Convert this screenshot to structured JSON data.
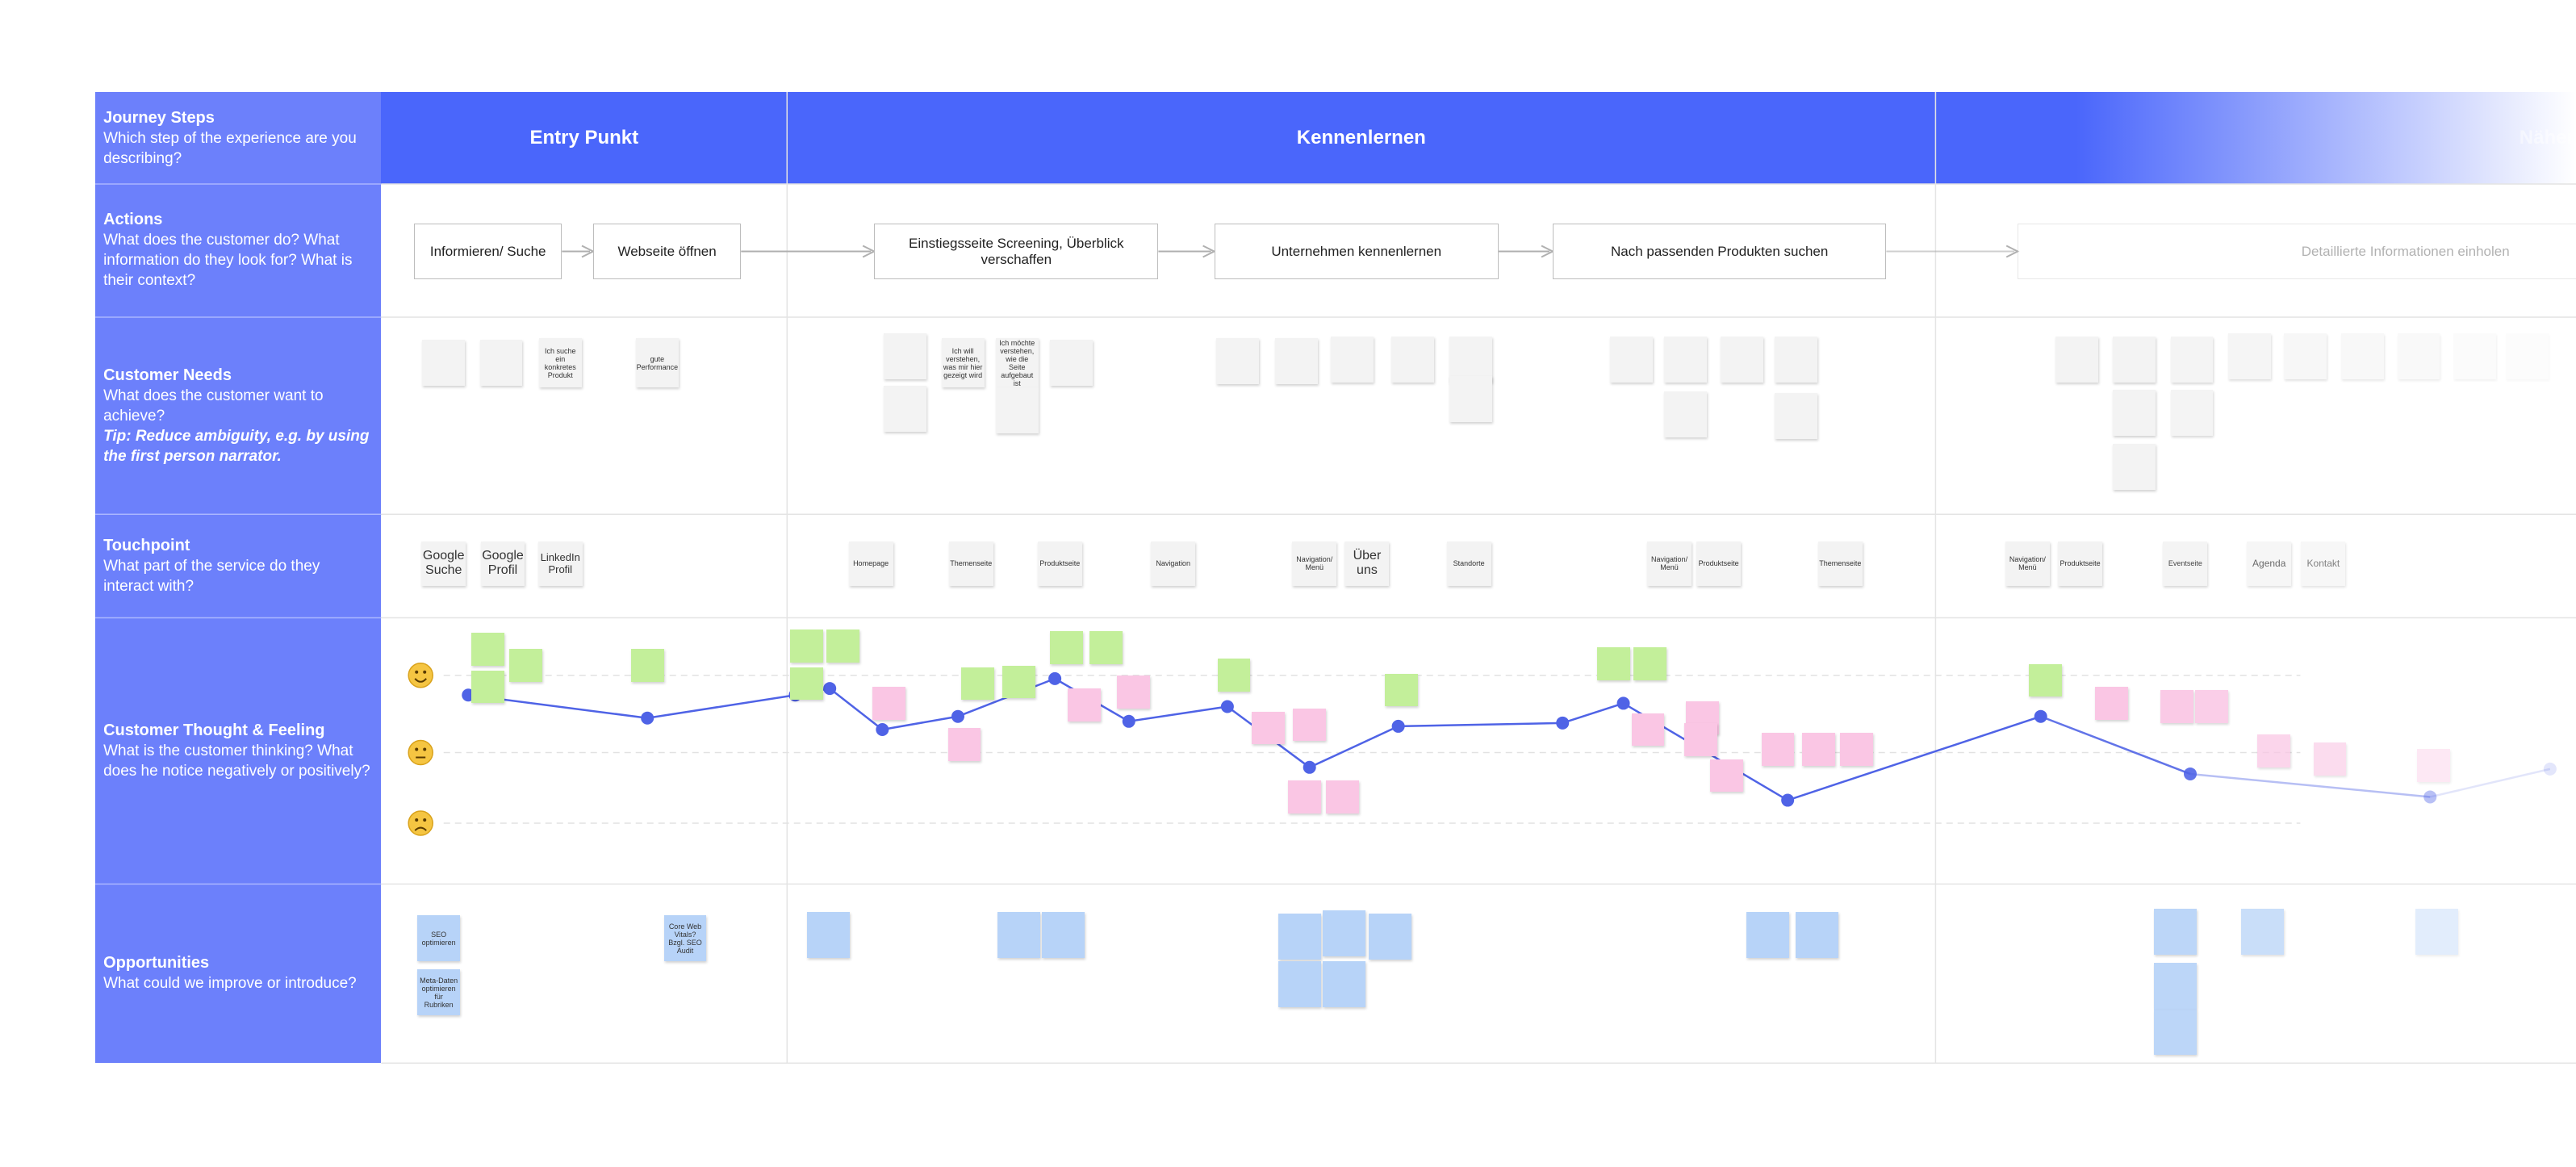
{
  "rows": [
    {
      "title": "Journey Steps",
      "description": "Which step of the experience are you describing?"
    },
    {
      "title": "Actions",
      "description": "What does the customer do? What information do they look for? What is their context?"
    },
    {
      "title": "Customer Needs",
      "description": "What does the customer want to achieve?",
      "tip": "Tip: Reduce ambiguity, e.g. by using the first person narrator."
    },
    {
      "title": "Touchpoint",
      "description": "What part of the service do they interact with?"
    },
    {
      "title": "Customer Thought & Feeling",
      "description": "What is the customer thinking? What does he notice negatively or positively?"
    },
    {
      "title": "Opportunities",
      "description": "What could we improve or introduce?"
    }
  ],
  "phases": [
    "Entry Punkt",
    "Kennenlernen",
    "Näher"
  ],
  "actions": [
    "Informieren/ Suche",
    "Webseite öffnen",
    "Einstiegsseite Screening, Überblick verschaffen",
    "Unternehmen kennenlernen",
    "Nach passenden Produkten suchen",
    "Detaillierte Informationen einholen"
  ],
  "needs": [
    "Ich suche ein konkretes Produkt",
    "gute Performance",
    "Ich will verstehen, was mir hier gezeigt wird",
    "Ich möchte verstehen, wie die Seite aufgebaut ist"
  ],
  "touchpoints": [
    "Google Suche",
    "Google Profil",
    "LinkedIn Profil",
    "Homepage",
    "Themenseite",
    "Produktseite",
    "Navigation",
    "Navigation/ Menü",
    "Über uns",
    "Standorte",
    "Navigation/ Menü",
    "Produktseite",
    "Themenseite",
    "Navigation/ Menü",
    "Produktseite",
    "Eventseite",
    "Agenda",
    "Kontakt"
  ],
  "opportunities": [
    "SEO optimieren",
    "Meta-Daten optimieren für Rubriken",
    "Core Web Vitals? Bzgl. SEO Audit"
  ]
}
